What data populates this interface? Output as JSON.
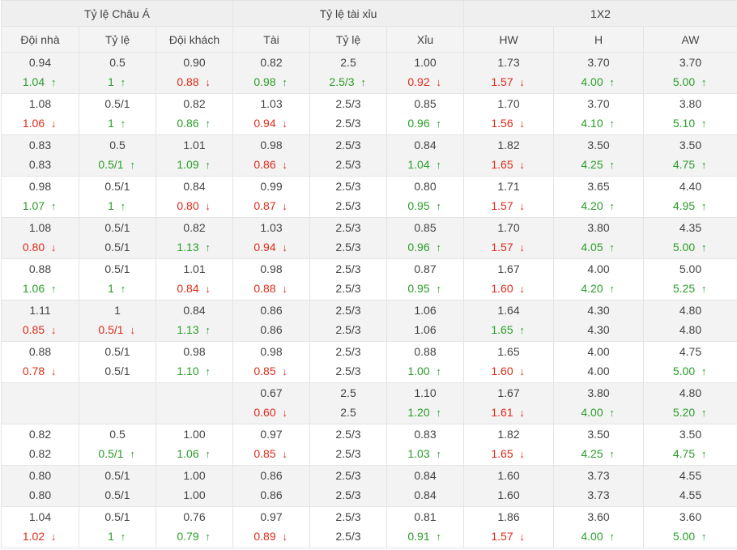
{
  "header": {
    "groups": [
      "Tỷ lệ Châu Á",
      "Tỷ lệ tài xỉu",
      "1X2"
    ],
    "columns": [
      "Đội nhà",
      "Tỷ lệ",
      "Đội khách",
      "Tài",
      "Tỷ lệ",
      "Xỉu",
      "HW",
      "H",
      "AW"
    ]
  },
  "icons": {
    "up": "arrow-up-icon",
    "down": "arrow-down-icon"
  },
  "colors": {
    "up": "#2a9d2a",
    "down": "#dd2b1a",
    "header_bg": "#efefef",
    "alt_row_bg": "#f3f3f3"
  },
  "rows": [
    {
      "cells": [
        [
          "0.94",
          "1.04",
          "up"
        ],
        [
          "0.5",
          "1",
          "up"
        ],
        [
          "0.90",
          "0.88",
          "down"
        ],
        [
          "0.82",
          "0.98",
          "up"
        ],
        [
          "2.5",
          "2.5/3",
          "up"
        ],
        [
          "1.00",
          "0.92",
          "down"
        ],
        [
          "1.73",
          "1.57",
          "down"
        ],
        [
          "3.70",
          "4.00",
          "up"
        ],
        [
          "3.70",
          "5.00",
          "up"
        ]
      ]
    },
    {
      "cells": [
        [
          "1.08",
          "1.06",
          "down"
        ],
        [
          "0.5/1",
          "1",
          "up"
        ],
        [
          "0.82",
          "0.86",
          "up"
        ],
        [
          "1.03",
          "0.94",
          "down"
        ],
        [
          "2.5/3",
          "2.5/3",
          ""
        ],
        [
          "0.85",
          "0.96",
          "up"
        ],
        [
          "1.70",
          "1.56",
          "down"
        ],
        [
          "3.70",
          "4.10",
          "up"
        ],
        [
          "3.80",
          "5.10",
          "up"
        ]
      ]
    },
    {
      "cells": [
        [
          "0.83",
          "0.83",
          ""
        ],
        [
          "0.5",
          "0.5/1",
          "up"
        ],
        [
          "1.01",
          "1.09",
          "up"
        ],
        [
          "0.98",
          "0.86",
          "down"
        ],
        [
          "2.5/3",
          "2.5/3",
          ""
        ],
        [
          "0.84",
          "1.04",
          "up"
        ],
        [
          "1.82",
          "1.65",
          "down"
        ],
        [
          "3.50",
          "4.25",
          "up"
        ],
        [
          "3.50",
          "4.75",
          "up"
        ]
      ]
    },
    {
      "cells": [
        [
          "0.98",
          "1.07",
          "up"
        ],
        [
          "0.5/1",
          "1",
          "up"
        ],
        [
          "0.84",
          "0.80",
          "down"
        ],
        [
          "0.99",
          "0.87",
          "down"
        ],
        [
          "2.5/3",
          "2.5/3",
          ""
        ],
        [
          "0.80",
          "0.95",
          "up"
        ],
        [
          "1.71",
          "1.57",
          "down"
        ],
        [
          "3.65",
          "4.20",
          "up"
        ],
        [
          "4.40",
          "4.95",
          "up"
        ]
      ]
    },
    {
      "cells": [
        [
          "1.08",
          "0.80",
          "down"
        ],
        [
          "0.5/1",
          "0.5/1",
          ""
        ],
        [
          "0.82",
          "1.13",
          "up"
        ],
        [
          "1.03",
          "0.94",
          "down"
        ],
        [
          "2.5/3",
          "2.5/3",
          ""
        ],
        [
          "0.85",
          "0.96",
          "up"
        ],
        [
          "1.70",
          "1.57",
          "down"
        ],
        [
          "3.80",
          "4.05",
          "up"
        ],
        [
          "4.35",
          "5.00",
          "up"
        ]
      ]
    },
    {
      "cells": [
        [
          "0.88",
          "1.06",
          "up"
        ],
        [
          "0.5/1",
          "1",
          "up"
        ],
        [
          "1.01",
          "0.84",
          "down"
        ],
        [
          "0.98",
          "0.88",
          "down"
        ],
        [
          "2.5/3",
          "2.5/3",
          ""
        ],
        [
          "0.87",
          "0.95",
          "up"
        ],
        [
          "1.67",
          "1.60",
          "down"
        ],
        [
          "4.00",
          "4.20",
          "up"
        ],
        [
          "5.00",
          "5.25",
          "up"
        ]
      ]
    },
    {
      "cells": [
        [
          "1.11",
          "0.85",
          "down"
        ],
        [
          "1",
          "0.5/1",
          "down"
        ],
        [
          "0.84",
          "1.13",
          "up"
        ],
        [
          "0.86",
          "0.86",
          ""
        ],
        [
          "2.5/3",
          "2.5/3",
          ""
        ],
        [
          "1.06",
          "1.06",
          ""
        ],
        [
          "1.64",
          "1.65",
          "up"
        ],
        [
          "4.30",
          "4.30",
          ""
        ],
        [
          "4.80",
          "4.80",
          ""
        ]
      ]
    },
    {
      "cells": [
        [
          "0.88",
          "0.78",
          "down"
        ],
        [
          "0.5/1",
          "0.5/1",
          ""
        ],
        [
          "0.98",
          "1.10",
          "up"
        ],
        [
          "0.98",
          "0.85",
          "down"
        ],
        [
          "2.5/3",
          "2.5/3",
          ""
        ],
        [
          "0.88",
          "1.00",
          "up"
        ],
        [
          "1.65",
          "1.60",
          "down"
        ],
        [
          "4.00",
          "4.00",
          ""
        ],
        [
          "4.75",
          "5.00",
          "up"
        ]
      ]
    },
    {
      "cells": [
        [
          "",
          "",
          ""
        ],
        [
          "",
          "",
          ""
        ],
        [
          "",
          "",
          ""
        ],
        [
          "0.67",
          "0.60",
          "down"
        ],
        [
          "2.5",
          "2.5",
          ""
        ],
        [
          "1.10",
          "1.20",
          "up"
        ],
        [
          "1.67",
          "1.61",
          "down"
        ],
        [
          "3.80",
          "4.00",
          "up"
        ],
        [
          "4.80",
          "5.20",
          "up"
        ]
      ]
    },
    {
      "cells": [
        [
          "0.82",
          "0.82",
          ""
        ],
        [
          "0.5",
          "0.5/1",
          "up"
        ],
        [
          "1.00",
          "1.06",
          "up"
        ],
        [
          "0.97",
          "0.85",
          "down"
        ],
        [
          "2.5/3",
          "2.5/3",
          ""
        ],
        [
          "0.83",
          "1.03",
          "up"
        ],
        [
          "1.82",
          "1.65",
          "down"
        ],
        [
          "3.50",
          "4.25",
          "up"
        ],
        [
          "3.50",
          "4.75",
          "up"
        ]
      ]
    },
    {
      "cells": [
        [
          "0.80",
          "0.80",
          ""
        ],
        [
          "0.5/1",
          "0.5/1",
          ""
        ],
        [
          "1.00",
          "1.00",
          ""
        ],
        [
          "0.86",
          "0.86",
          ""
        ],
        [
          "2.5/3",
          "2.5/3",
          ""
        ],
        [
          "0.84",
          "0.84",
          ""
        ],
        [
          "1.60",
          "1.60",
          ""
        ],
        [
          "3.73",
          "3.73",
          ""
        ],
        [
          "4.55",
          "4.55",
          ""
        ]
      ]
    },
    {
      "cells": [
        [
          "1.04",
          "1.02",
          "down"
        ],
        [
          "0.5/1",
          "1",
          "up"
        ],
        [
          "0.76",
          "0.79",
          "up"
        ],
        [
          "0.97",
          "0.89",
          "down"
        ],
        [
          "2.5/3",
          "2.5/3",
          ""
        ],
        [
          "0.81",
          "0.91",
          "up"
        ],
        [
          "1.86",
          "1.57",
          "down"
        ],
        [
          "3.60",
          "4.00",
          "up"
        ],
        [
          "3.60",
          "5.00",
          "up"
        ]
      ]
    }
  ]
}
